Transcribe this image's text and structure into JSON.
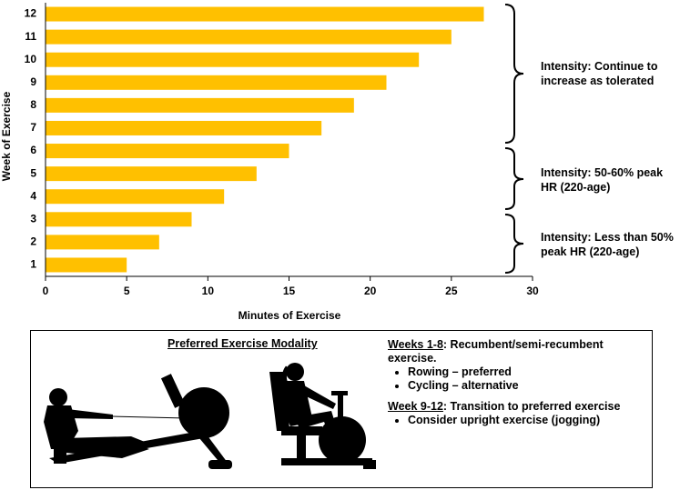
{
  "chart_data": {
    "type": "bar",
    "orientation": "horizontal",
    "categories": [
      "1",
      "2",
      "3",
      "4",
      "5",
      "6",
      "7",
      "8",
      "9",
      "10",
      "11",
      "12"
    ],
    "values": [
      5,
      7,
      9,
      11,
      13,
      15,
      17,
      19,
      21,
      23,
      25,
      27
    ],
    "color": "#ffc000",
    "xlim": [
      0,
      30
    ],
    "xticks": [
      0,
      5,
      10,
      15,
      20,
      25,
      30
    ],
    "xlabel": "Minutes of Exercise",
    "ylabel": "Week of Exercise",
    "annotations": [
      "Intensity: Continue to increase as tolerated",
      "Intensity: 50-60% peak HR (220-age)",
      "Intensity: Less than 50% peak HR (220-age)"
    ]
  },
  "panel": {
    "title": "Preferred Exercise Modality",
    "sections": [
      {
        "heading": "Weeks 1-8",
        "text": ": Recumbent/semi-recumbent exercise.",
        "bullets": [
          "Rowing – preferred",
          "Cycling – alternative"
        ]
      },
      {
        "heading": "Week 9-12",
        "text": ": Transition to preferred exercise",
        "bullets": [
          "Consider upright exercise (jogging)"
        ]
      }
    ]
  }
}
